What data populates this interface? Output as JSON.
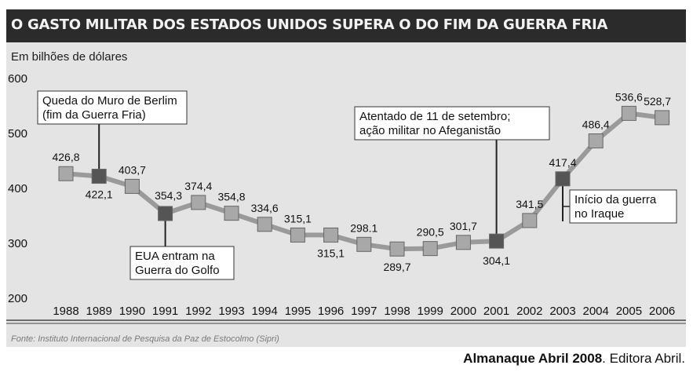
{
  "header": {
    "title": "O GASTO MILITAR DOS ESTADOS UNIDOS SUPERA O DO FIM DA GUERRA FRIA"
  },
  "source": "Fonte: Instituto Internacional de Pesquisa da Paz de Estocolmo (Sipri)",
  "credit": {
    "bold": "Almanaque Abril 2008",
    "rest": ". Editora Abril."
  },
  "colors": {
    "line": "#9a9a9a",
    "marker": "#a8a8a8",
    "marker_dark": "#555555",
    "title_bg": "#2b2b2b",
    "panel_bg": "#e4e4e4"
  },
  "chart_data": {
    "type": "line",
    "title": "O GASTO MILITAR DOS ESTADOS UNIDOS SUPERA O DO FIM DA GUERRA FRIA",
    "ylabel": "Em bilhões de dólares",
    "xlabel": "",
    "ylim": [
      200,
      600
    ],
    "yticks": [
      "200",
      "300",
      "400",
      "500",
      "600"
    ],
    "grid": false,
    "categories": [
      "1988",
      "1989",
      "1990",
      "1991",
      "1992",
      "1993",
      "1994",
      "1995",
      "1996",
      "1997",
      "1998",
      "1999",
      "2000",
      "2001",
      "2002",
      "2003",
      "2004",
      "2005",
      "2006"
    ],
    "values": [
      426.8,
      422.1,
      403.7,
      354.3,
      374.4,
      354.8,
      334.6,
      315.1,
      315.1,
      298.1,
      289.7,
      290.5,
      301.7,
      304.1,
      341.5,
      417.4,
      486.4,
      536.6,
      528.7
    ],
    "value_labels": [
      "426,8",
      "422,1",
      "403,7",
      "354,3",
      "374,4",
      "354,8",
      "334,6",
      "315,1",
      "315,1",
      "298.1",
      "289,7",
      "290,5",
      "301,7",
      "304,1",
      "341,5",
      "417,4",
      "486,4",
      "536,6",
      "528,7"
    ],
    "annotations": [
      {
        "category": "1989",
        "lines": [
          "Queda do Muro de Berlim",
          "(fim da Guerra Fria)"
        ]
      },
      {
        "category": "1991",
        "lines": [
          "EUA entram na",
          "Guerra do Golfo"
        ]
      },
      {
        "category": "2001",
        "lines": [
          "Atentado de 11 de setembro;",
          "ação militar no Afeganistão"
        ]
      },
      {
        "category": "2003",
        "lines": [
          "Início da guerra",
          "no Iraque"
        ]
      }
    ]
  }
}
